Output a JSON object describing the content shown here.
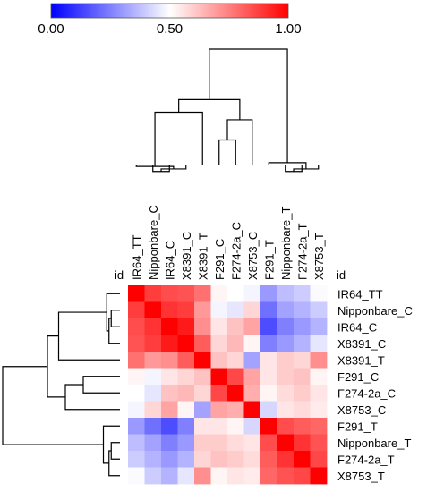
{
  "chart_data": {
    "type": "heatmap",
    "title": "",
    "row_axis_label": "id",
    "col_axis_label": "id",
    "labels": [
      "IR64_TT",
      "Nipponbare_C",
      "IR64_C",
      "X8391_C",
      "X8391_T",
      "F291_C",
      "F274-2a_C",
      "X8753_C",
      "F291_T",
      "Nipponbare_T",
      "F274-2a_T",
      "X8753_T"
    ],
    "color_scale": {
      "min": 0.0,
      "mid": 0.5,
      "max": 1.0,
      "colors": [
        "#0000ff",
        "#ffffff",
        "#ff0000"
      ],
      "tick_labels": [
        "0.00",
        "0.50",
        "1.00"
      ]
    },
    "matrix": [
      [
        1.0,
        0.88,
        0.85,
        0.84,
        0.78,
        0.52,
        0.5,
        0.48,
        0.3,
        0.37,
        0.4,
        0.49
      ],
      [
        0.88,
        1.0,
        0.9,
        0.88,
        0.7,
        0.48,
        0.45,
        0.58,
        0.22,
        0.32,
        0.35,
        0.4
      ],
      [
        0.85,
        0.9,
        1.0,
        0.95,
        0.72,
        0.55,
        0.62,
        0.68,
        0.15,
        0.25,
        0.3,
        0.35
      ],
      [
        0.84,
        0.88,
        0.95,
        1.0,
        0.82,
        0.58,
        0.64,
        0.52,
        0.25,
        0.3,
        0.35,
        0.45
      ],
      [
        0.78,
        0.7,
        0.72,
        0.82,
        1.0,
        0.62,
        0.58,
        0.32,
        0.55,
        0.6,
        0.58,
        0.72
      ],
      [
        0.52,
        0.48,
        0.55,
        0.58,
        0.62,
        1.0,
        0.86,
        0.68,
        0.55,
        0.6,
        0.62,
        0.52
      ],
      [
        0.5,
        0.45,
        0.62,
        0.64,
        0.58,
        0.86,
        1.0,
        0.66,
        0.52,
        0.57,
        0.6,
        0.55
      ],
      [
        0.48,
        0.58,
        0.68,
        0.52,
        0.32,
        0.68,
        0.66,
        1.0,
        0.42,
        0.55,
        0.57,
        0.54
      ],
      [
        0.3,
        0.22,
        0.15,
        0.25,
        0.55,
        0.55,
        0.52,
        0.42,
        1.0,
        0.85,
        0.82,
        0.8
      ],
      [
        0.37,
        0.32,
        0.25,
        0.3,
        0.6,
        0.6,
        0.57,
        0.55,
        0.85,
        1.0,
        0.9,
        0.84
      ],
      [
        0.4,
        0.35,
        0.3,
        0.35,
        0.58,
        0.62,
        0.6,
        0.57,
        0.82,
        0.9,
        1.0,
        0.86
      ],
      [
        0.49,
        0.4,
        0.35,
        0.45,
        0.72,
        0.52,
        0.55,
        0.54,
        0.8,
        0.84,
        0.86,
        1.0
      ]
    ],
    "dendrogram": {
      "linkage": [
        {
          "id": "c1",
          "left": "Nipponbare_C",
          "right": "IR64_C",
          "height": 0.03
        },
        {
          "id": "c2",
          "left": "c1",
          "right": "X8391_C",
          "height": 0.05
        },
        {
          "id": "c3",
          "left": "IR64_TT",
          "right": "c2",
          "height": 0.07
        },
        {
          "id": "c4",
          "left": "F291_C",
          "right": "F274-2a_C",
          "height": 0.28
        },
        {
          "id": "c5",
          "left": "c3",
          "right": "X8391_T",
          "height": 0.5
        },
        {
          "id": "c6",
          "left": "c4",
          "right": "X8753_C",
          "height": 0.44
        },
        {
          "id": "c7",
          "left": "c5",
          "right": "c6",
          "height": 0.6
        },
        {
          "id": "c8",
          "left": "Nipponbare_T",
          "right": "F274-2a_T",
          "height": 0.03
        },
        {
          "id": "c9",
          "left": "c8",
          "right": "X8753_T",
          "height": 0.05
        },
        {
          "id": "c10",
          "left": "F291_T",
          "right": "c9",
          "height": 0.1
        },
        {
          "id": "c11",
          "left": "c7",
          "right": "c10",
          "height": 1.0
        }
      ]
    }
  }
}
